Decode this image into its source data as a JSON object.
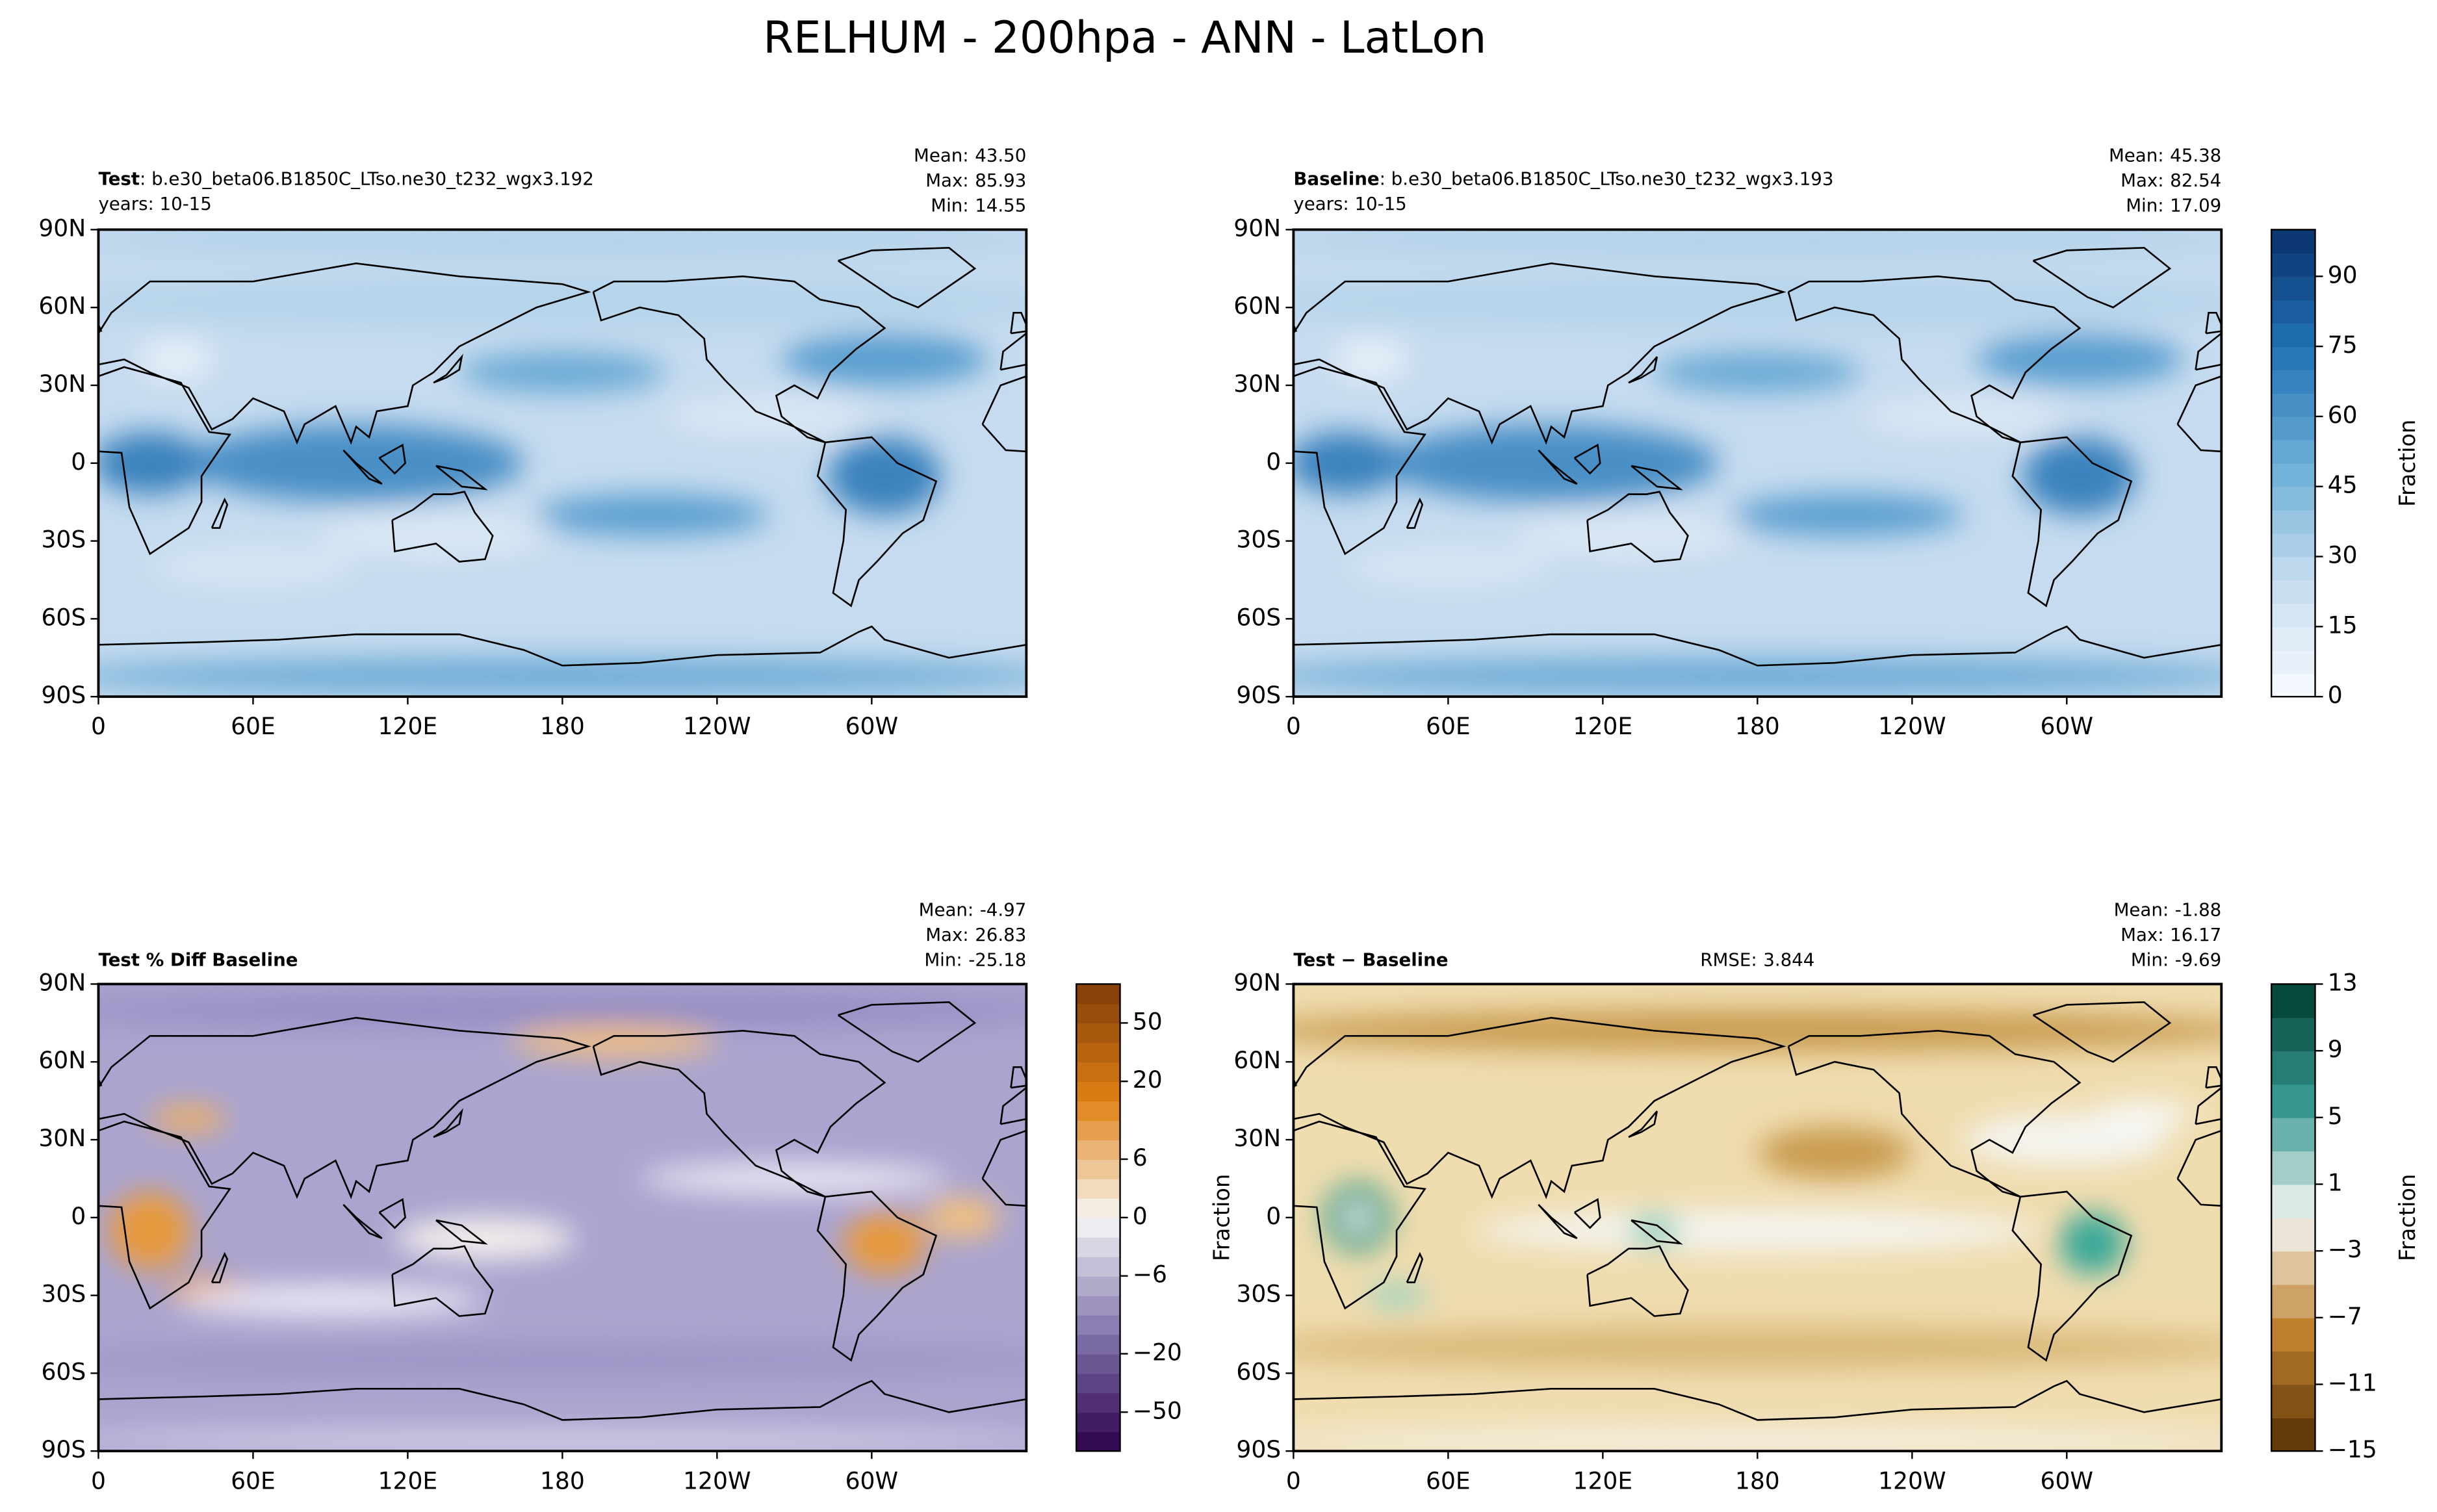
{
  "title": "RELHUM - 200hpa - ANN - LatLon",
  "chart_data": [
    {
      "type": "map",
      "name": "Test",
      "case": ": b.e30_beta06.B1850C_LTso.ne30_t232_wgx3.192",
      "years": "years: 10-15",
      "stats": {
        "names": [
          "Mean:",
          "Max:",
          "Min:"
        ],
        "values": [
          43.5,
          85.93,
          14.55
        ],
        "value_labels": [
          "43.50",
          "85.93",
          "14.55"
        ]
      },
      "xlim": [
        0,
        360
      ],
      "xticks": [
        0,
        {
          "value": 60,
          "label": "60E"
        },
        {
          "value": 120,
          "label": "120E"
        },
        180,
        {
          "value": 240,
          "label": "120W"
        },
        {
          "value": 300,
          "label": "60W"
        }
      ],
      "ylim": [
        -90,
        90
      ],
      "yticks": [
        {
          "value": 90,
          "label": "90N"
        },
        {
          "value": 60,
          "label": "60N"
        },
        {
          "value": 30,
          "label": "30N"
        },
        0,
        {
          "value": -30,
          "label": "30S"
        },
        {
          "value": -60,
          "label": "60S"
        },
        {
          "value": -90,
          "label": "90S"
        }
      ]
    },
    {
      "type": "map",
      "name": "Baseline",
      "case": ": b.e30_beta06.B1850C_LTso.ne30_t232_wgx3.193",
      "years": "years: 10-15",
      "stats": {
        "names": [
          "Mean:",
          "Max:",
          "Min:"
        ],
        "values": [
          45.38,
          82.54,
          17.09
        ],
        "value_labels": [
          "45.38",
          "82.54",
          "17.09"
        ]
      },
      "xlim": [
        0,
        360
      ],
      "xticks": [
        0,
        {
          "value": 60,
          "label": "60E"
        },
        {
          "value": 120,
          "label": "120E"
        },
        180,
        {
          "value": 240,
          "label": "120W"
        },
        {
          "value": 300,
          "label": "60W"
        }
      ],
      "ylim": [
        -90,
        90
      ],
      "yticks": [
        {
          "value": 90,
          "label": "90N"
        },
        {
          "value": 60,
          "label": "60N"
        },
        {
          "value": 30,
          "label": "30N"
        },
        0,
        {
          "value": -30,
          "label": "30S"
        },
        {
          "value": -60,
          "label": "60S"
        },
        {
          "value": -90,
          "label": "90S"
        }
      ],
      "colorbar": {
        "label": "Fraction",
        "cmap": [
          "#f7fbff",
          "#c6dbef",
          "#6baed6",
          "#2171b5",
          "#08306b"
        ],
        "levels": [
          0,
          5,
          10,
          15,
          20,
          25,
          30,
          35,
          40,
          45,
          50,
          55,
          60,
          65,
          70,
          75,
          80,
          85,
          90,
          95,
          100
        ],
        "ticks": [
          0,
          15,
          30,
          45,
          60,
          75,
          90
        ]
      }
    },
    {
      "type": "map",
      "name": "Test % Diff Baseline",
      "stats": {
        "names": [
          "Mean:",
          "Max:",
          "Min:"
        ],
        "values": [
          -4.97,
          26.83,
          -25.18
        ],
        "value_labels": [
          "-4.97",
          "26.83",
          "-25.18"
        ]
      },
      "xlim": [
        0,
        360
      ],
      "xticks": [
        0,
        {
          "value": 60,
          "label": "60E"
        },
        {
          "value": 120,
          "label": "120E"
        },
        180,
        {
          "value": 240,
          "label": "120W"
        },
        {
          "value": 300,
          "label": "60W"
        }
      ],
      "ylim": [
        -90,
        90
      ],
      "yticks": [
        {
          "value": 90,
          "label": "90N"
        },
        {
          "value": 60,
          "label": "60N"
        },
        {
          "value": 30,
          "label": "30N"
        },
        0,
        {
          "value": -30,
          "label": "30S"
        },
        {
          "value": -60,
          "label": "60S"
        },
        {
          "value": -90,
          "label": "90S"
        }
      ],
      "colorbar": {
        "cmap": [
          "#2d004b",
          "#8073ac",
          "#f7f7f7",
          "#e08214",
          "#7f3b08"
        ],
        "levels": [
          -100,
          -75,
          -50,
          -40,
          -30,
          -20,
          -15,
          -10,
          -8,
          -6,
          -4,
          -2,
          0,
          2,
          4,
          6,
          8,
          10,
          15,
          20,
          30,
          40,
          50,
          75,
          100
        ],
        "ticks": [
          {
            "value": -50,
            "label": "−50"
          },
          {
            "value": -20,
            "label": "−20"
          },
          {
            "value": -6,
            "label": "−6"
          },
          0,
          6,
          20,
          50
        ]
      }
    },
    {
      "type": "map",
      "name": "Test − Baseline",
      "rmse_label": "RMSE:",
      "rmse": 3.844,
      "ylabel": "Fraction",
      "stats": {
        "names": [
          "Mean:",
          "Max:",
          "Min:"
        ],
        "values": [
          -1.88,
          16.17,
          -9.69
        ],
        "value_labels": [
          "-1.88",
          "16.17",
          "-9.69"
        ]
      },
      "xlim": [
        0,
        360
      ],
      "xticks": [
        0,
        {
          "value": 60,
          "label": "60E"
        },
        {
          "value": 120,
          "label": "120E"
        },
        180,
        {
          "value": 240,
          "label": "120W"
        },
        {
          "value": 300,
          "label": "60W"
        }
      ],
      "ylim": [
        -90,
        90
      ],
      "yticks": [
        {
          "value": 90,
          "label": "90N"
        },
        {
          "value": 60,
          "label": "60N"
        },
        {
          "value": 30,
          "label": "30N"
        },
        0,
        {
          "value": -30,
          "label": "30S"
        },
        {
          "value": -60,
          "label": "60S"
        },
        {
          "value": -90,
          "label": "90S"
        }
      ],
      "colorbar": {
        "label": "Fraction",
        "cmap": [
          "#543005",
          "#bf812d",
          "#f5f5f5",
          "#35978f",
          "#003c30"
        ],
        "levels": [
          -15,
          -13,
          -11,
          -9,
          -7,
          -5,
          -3,
          -1,
          1,
          3,
          5,
          7,
          9,
          11,
          13
        ],
        "ticks": [
          {
            "value": -15,
            "label": "−15"
          },
          {
            "value": -11,
            "label": "−11"
          },
          {
            "value": -7,
            "label": "−7"
          },
          {
            "value": -3,
            "label": "−3"
          },
          1,
          5,
          9,
          13
        ]
      }
    }
  ]
}
